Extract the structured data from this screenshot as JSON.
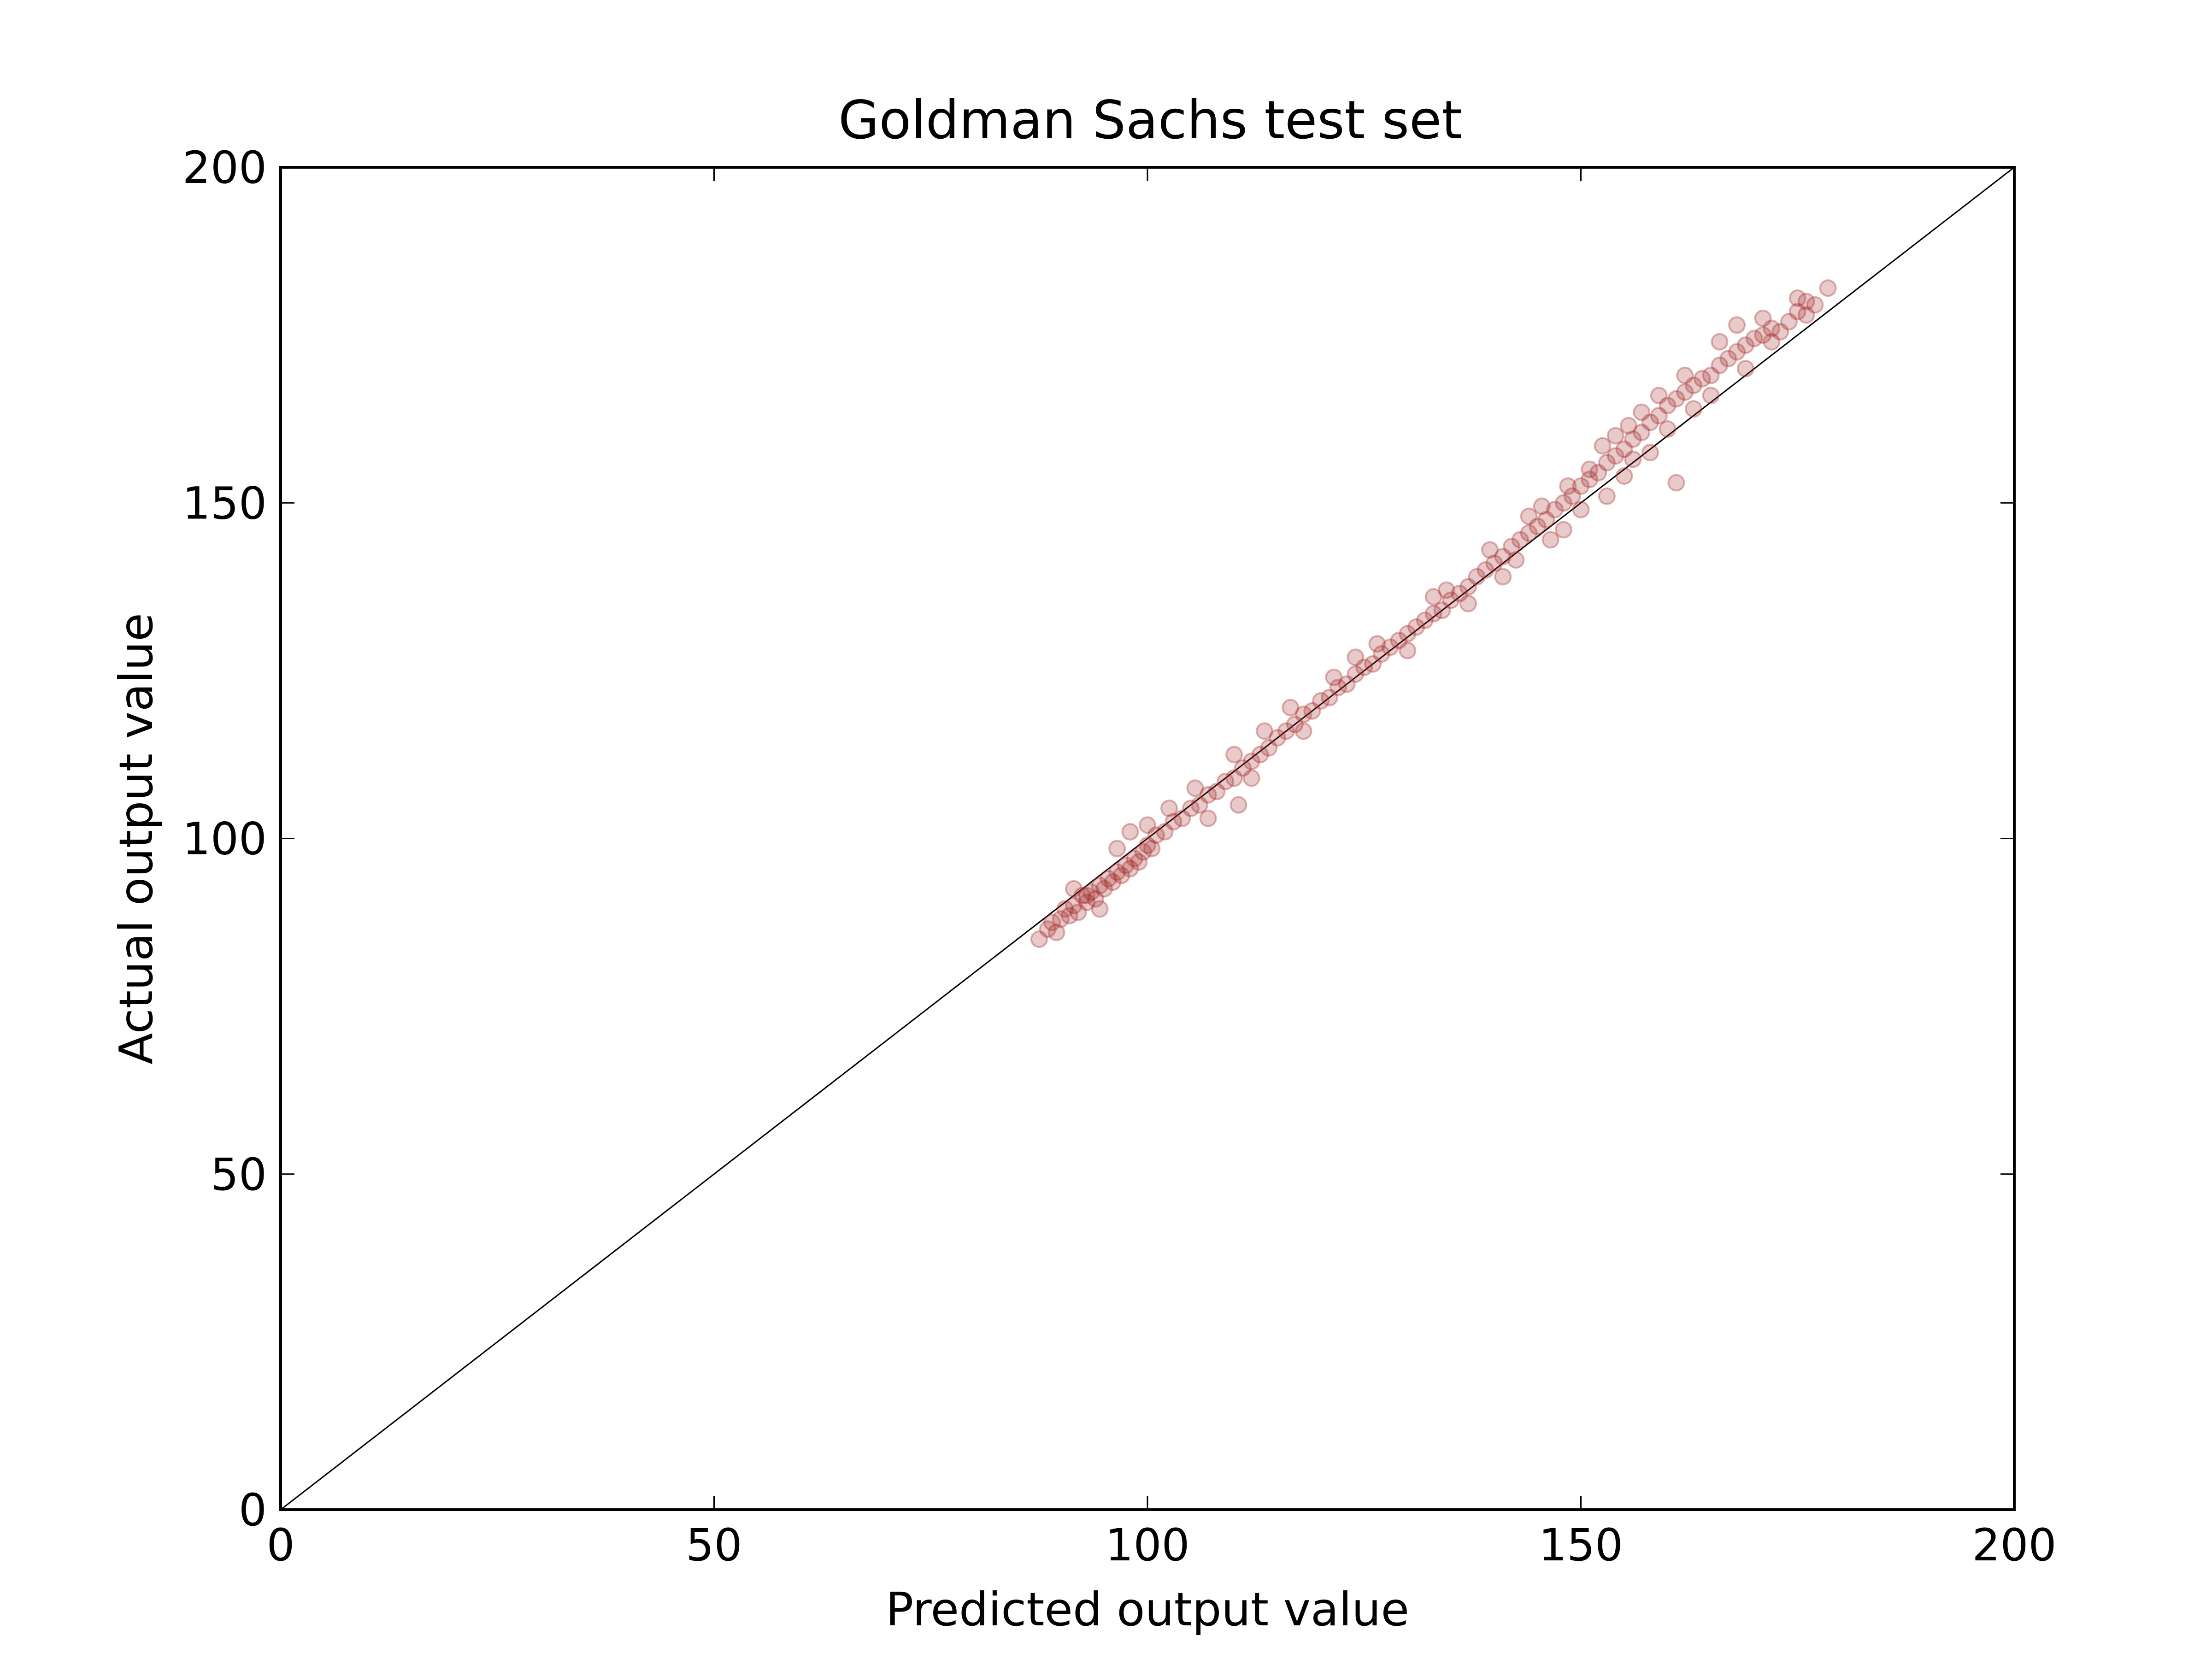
{
  "chart_data": {
    "type": "scatter",
    "title": "Goldman Sachs test set",
    "xlabel": "Predicted output value",
    "ylabel": "Actual output value",
    "xlim": [
      0,
      200
    ],
    "ylim": [
      0,
      200
    ],
    "xticks": [
      0,
      50,
      100,
      150,
      200
    ],
    "yticks": [
      0,
      50,
      100,
      150,
      200
    ],
    "xtick_labels": [
      "0",
      "50",
      "100",
      "150",
      "200"
    ],
    "ytick_labels": [
      "0",
      "50",
      "100",
      "150",
      "200"
    ],
    "grid": false,
    "reference_line": {
      "from": [
        0,
        0
      ],
      "to": [
        200,
        200
      ],
      "color": "#000000"
    },
    "marker_color": "#a52a2a",
    "marker_opacity": 0.25,
    "series": [
      {
        "points": [
          [
            87.5,
            85.0
          ],
          [
            88.5,
            86.5
          ],
          [
            89.0,
            87.5
          ],
          [
            90.0,
            88.0
          ],
          [
            90.5,
            89.5
          ],
          [
            91.0,
            88.5
          ],
          [
            91.5,
            90.0
          ],
          [
            92.0,
            89.0
          ],
          [
            92.5,
            91.5
          ],
          [
            93.0,
            90.5
          ],
          [
            93.5,
            92.0
          ],
          [
            94.0,
            91.0
          ],
          [
            94.5,
            93.0
          ],
          [
            95.0,
            92.5
          ],
          [
            95.5,
            94.0
          ],
          [
            96.0,
            93.5
          ],
          [
            96.5,
            95.0
          ],
          [
            97.0,
            94.5
          ],
          [
            97.5,
            96.0
          ],
          [
            98.0,
            95.5
          ],
          [
            98.5,
            97.0
          ],
          [
            99.0,
            96.5
          ],
          [
            99.5,
            98.0
          ],
          [
            100.0,
            99.0
          ],
          [
            100.5,
            98.5
          ],
          [
            101.0,
            100.5
          ],
          [
            102.0,
            101.0
          ],
          [
            103.0,
            102.5
          ],
          [
            104.0,
            103.0
          ],
          [
            105.0,
            104.5
          ],
          [
            106.0,
            105.0
          ],
          [
            107.0,
            106.5
          ],
          [
            108.0,
            107.0
          ],
          [
            109.0,
            108.5
          ],
          [
            110.0,
            109.0
          ],
          [
            111.0,
            110.5
          ],
          [
            112.0,
            111.5
          ],
          [
            113.0,
            112.5
          ],
          [
            114.0,
            113.5
          ],
          [
            115.0,
            115.0
          ],
          [
            116.0,
            116.0
          ],
          [
            117.0,
            117.0
          ],
          [
            118.0,
            118.5
          ],
          [
            119.0,
            119.0
          ],
          [
            120.0,
            120.5
          ],
          [
            121.0,
            121.0
          ],
          [
            122.0,
            122.5
          ],
          [
            123.0,
            123.0
          ],
          [
            124.0,
            124.5
          ],
          [
            125.0,
            125.5
          ],
          [
            126.0,
            126.0
          ],
          [
            127.0,
            127.5
          ],
          [
            128.0,
            128.5
          ],
          [
            129.0,
            129.5
          ],
          [
            130.0,
            130.5
          ],
          [
            131.0,
            131.5
          ],
          [
            132.0,
            132.5
          ],
          [
            133.0,
            133.5
          ],
          [
            134.0,
            134.0
          ],
          [
            135.0,
            135.5
          ],
          [
            136.0,
            136.5
          ],
          [
            137.0,
            137.5
          ],
          [
            138.0,
            139.0
          ],
          [
            139.0,
            140.0
          ],
          [
            140.0,
            141.0
          ],
          [
            141.0,
            142.0
          ],
          [
            142.0,
            143.5
          ],
          [
            143.0,
            144.5
          ],
          [
            144.0,
            145.5
          ],
          [
            145.0,
            146.5
          ],
          [
            146.0,
            147.5
          ],
          [
            147.0,
            149.0
          ],
          [
            148.0,
            150.0
          ],
          [
            149.0,
            151.0
          ],
          [
            150.0,
            152.5
          ],
          [
            151.0,
            153.5
          ],
          [
            152.0,
            154.5
          ],
          [
            153.0,
            156.0
          ],
          [
            154.0,
            157.0
          ],
          [
            155.0,
            158.0
          ],
          [
            156.0,
            159.5
          ],
          [
            157.0,
            160.5
          ],
          [
            158.0,
            162.0
          ],
          [
            159.0,
            163.0
          ],
          [
            160.0,
            164.5
          ],
          [
            161.0,
            165.5
          ],
          [
            162.0,
            166.5
          ],
          [
            163.0,
            167.5
          ],
          [
            164.0,
            168.5
          ],
          [
            165.0,
            169.0
          ],
          [
            166.0,
            170.5
          ],
          [
            167.0,
            171.5
          ],
          [
            168.0,
            172.5
          ],
          [
            169.0,
            173.5
          ],
          [
            170.0,
            174.5
          ],
          [
            171.0,
            175.0
          ],
          [
            172.0,
            176.0
          ],
          [
            173.0,
            175.5
          ],
          [
            174.0,
            177.0
          ],
          [
            175.0,
            178.5
          ],
          [
            176.0,
            180.0
          ],
          [
            177.0,
            179.5
          ],
          [
            178.5,
            182.0
          ],
          [
            161.0,
            153.0
          ],
          [
            107.0,
            103.0
          ],
          [
            110.5,
            105.0
          ],
          [
            93.0,
            91.5
          ],
          [
            94.5,
            89.5
          ],
          [
            98.0,
            101.0
          ],
          [
            100.0,
            102.0
          ],
          [
            110.0,
            112.5
          ],
          [
            112.0,
            109.0
          ],
          [
            118.0,
            116.0
          ],
          [
            124.0,
            127.0
          ],
          [
            130.0,
            128.0
          ],
          [
            133.0,
            136.0
          ],
          [
            137.0,
            135.0
          ],
          [
            141.0,
            139.0
          ],
          [
            144.0,
            148.0
          ],
          [
            148.0,
            146.0
          ],
          [
            150.0,
            149.0
          ],
          [
            151.0,
            155.0
          ],
          [
            153.0,
            151.0
          ],
          [
            154.0,
            160.0
          ],
          [
            155.0,
            154.0
          ],
          [
            156.0,
            156.5
          ],
          [
            157.0,
            163.5
          ],
          [
            158.0,
            157.5
          ],
          [
            159.0,
            166.0
          ],
          [
            160.0,
            161.0
          ],
          [
            162.0,
            169.0
          ],
          [
            163.0,
            164.0
          ],
          [
            165.0,
            166.0
          ],
          [
            166.0,
            174.0
          ],
          [
            168.0,
            176.5
          ],
          [
            169.0,
            170.0
          ],
          [
            171.0,
            177.5
          ],
          [
            172.0,
            174.0
          ],
          [
            175.0,
            180.5
          ],
          [
            176.0,
            178.0
          ],
          [
            152.5,
            158.5
          ],
          [
            155.5,
            161.5
          ],
          [
            145.5,
            149.5
          ],
          [
            142.5,
            141.5
          ],
          [
            146.5,
            144.5
          ],
          [
            148.5,
            152.5
          ],
          [
            139.5,
            143.0
          ],
          [
            134.5,
            137.0
          ],
          [
            126.5,
            129.0
          ],
          [
            121.5,
            124.0
          ],
          [
            116.5,
            119.5
          ],
          [
            113.5,
            116.0
          ],
          [
            105.5,
            107.5
          ],
          [
            102.5,
            104.5
          ],
          [
            96.5,
            98.5
          ],
          [
            91.5,
            92.5
          ],
          [
            89.5,
            86.0
          ]
        ]
      }
    ]
  }
}
